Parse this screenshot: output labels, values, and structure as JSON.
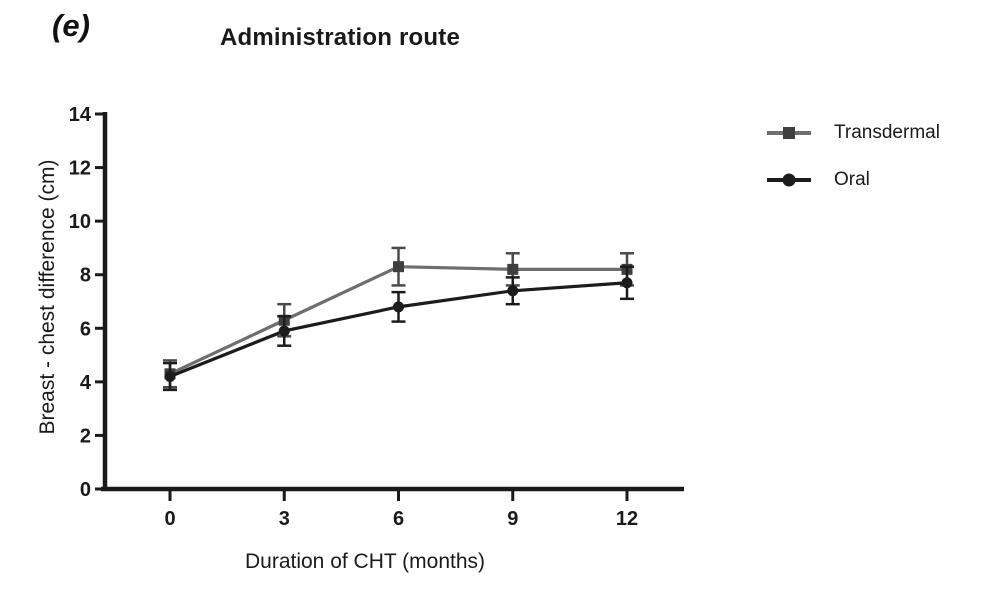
{
  "figure": {
    "panel_label": "(e)"
  },
  "chart_data": {
    "type": "line",
    "title": "Administration route",
    "xlabel": "Duration of CHT (months)",
    "ylabel": "Breast - chest difference (cm)",
    "xlim": [
      0,
      12
    ],
    "ylim": [
      0,
      14
    ],
    "xticks": [
      0,
      3,
      6,
      9,
      12
    ],
    "yticks": [
      0,
      2,
      4,
      6,
      8,
      10,
      12,
      14
    ],
    "grid": false,
    "legend_position": "right-outside",
    "axis_color": "#1a1a1a",
    "x": [
      0,
      3,
      6,
      9,
      12
    ],
    "series": [
      {
        "name": "Transdermal",
        "marker": "square",
        "line_color": "#6e6e6e",
        "marker_color": "#3f3f3f",
        "error_color": "#4a4a4a",
        "values": [
          4.3,
          6.3,
          8.3,
          8.2,
          8.2
        ],
        "errors": [
          0.5,
          0.6,
          0.7,
          0.6,
          0.6
        ]
      },
      {
        "name": "Oral",
        "marker": "circle",
        "line_color": "#1c1c1c",
        "marker_color": "#1c1c1c",
        "error_color": "#1c1c1c",
        "values": [
          4.2,
          5.9,
          6.8,
          7.4,
          7.7
        ],
        "errors": [
          0.5,
          0.55,
          0.55,
          0.5,
          0.6
        ]
      }
    ]
  }
}
